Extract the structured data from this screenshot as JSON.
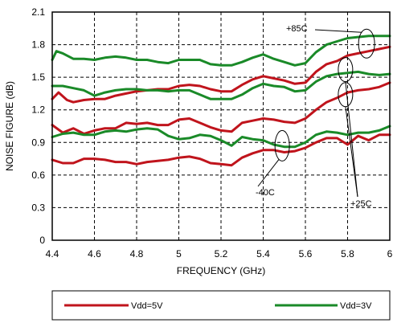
{
  "chart_data": {
    "type": "line",
    "xlabel": "FREQUENCY (GHz)",
    "ylabel": "NOISE FIGURE (dB)",
    "xlim": [
      4.4,
      6.0
    ],
    "ylim": [
      0,
      2.1
    ],
    "x_ticks": [
      "4.4",
      "4.6",
      "4.8",
      "5",
      "5.2",
      "5.4",
      "5.6",
      "5.8",
      "6"
    ],
    "y_ticks": [
      "0",
      "0.3",
      "0.6",
      "0.9",
      "1.2",
      "1.5",
      "1.8",
      "2.1"
    ],
    "grid": "dashed",
    "legend": "bottom",
    "legend_entries": [
      {
        "label": "Vdd=5V",
        "color": "#c0141c"
      },
      {
        "label": "Vdd=3V",
        "color": "#1a8a28"
      }
    ],
    "annotations": [
      "+85C",
      "+25C",
      "-40C"
    ],
    "series": [
      {
        "supply": "Vdd=3V",
        "temp": "+85C",
        "color": "#1a8a28",
        "x": [
          4.4,
          4.42,
          4.45,
          4.5,
          4.55,
          4.6,
          4.65,
          4.7,
          4.75,
          4.8,
          4.85,
          4.9,
          4.95,
          5.0,
          5.05,
          5.1,
          5.15,
          5.2,
          5.25,
          5.3,
          5.35,
          5.4,
          5.45,
          5.5,
          5.55,
          5.6,
          5.65,
          5.7,
          5.75,
          5.8,
          5.85,
          5.9,
          5.95,
          6.0
        ],
        "y": [
          1.66,
          1.74,
          1.72,
          1.67,
          1.67,
          1.66,
          1.68,
          1.69,
          1.68,
          1.66,
          1.66,
          1.64,
          1.63,
          1.66,
          1.66,
          1.66,
          1.62,
          1.61,
          1.61,
          1.64,
          1.68,
          1.71,
          1.67,
          1.64,
          1.61,
          1.63,
          1.73,
          1.8,
          1.83,
          1.86,
          1.87,
          1.88,
          1.88,
          1.88
        ]
      },
      {
        "supply": "Vdd=5V",
        "temp": "+85C",
        "color": "#c0141c",
        "x": [
          4.4,
          4.43,
          4.47,
          4.5,
          4.55,
          4.6,
          4.65,
          4.7,
          4.75,
          4.8,
          4.85,
          4.9,
          4.95,
          5.0,
          5.05,
          5.1,
          5.15,
          5.2,
          5.25,
          5.3,
          5.35,
          5.4,
          5.45,
          5.5,
          5.55,
          5.6,
          5.65,
          5.7,
          5.75,
          5.8,
          5.85,
          5.9,
          5.95,
          6.0
        ],
        "y": [
          1.3,
          1.36,
          1.29,
          1.27,
          1.29,
          1.3,
          1.3,
          1.33,
          1.35,
          1.37,
          1.38,
          1.39,
          1.39,
          1.42,
          1.43,
          1.42,
          1.39,
          1.37,
          1.37,
          1.43,
          1.48,
          1.51,
          1.49,
          1.47,
          1.44,
          1.45,
          1.55,
          1.62,
          1.65,
          1.7,
          1.72,
          1.74,
          1.76,
          1.78
        ]
      },
      {
        "supply": "Vdd=3V",
        "temp": "+25C",
        "color": "#1a8a28",
        "x": [
          4.4,
          4.45,
          4.5,
          4.55,
          4.6,
          4.65,
          4.7,
          4.75,
          4.8,
          4.85,
          4.9,
          4.95,
          5.0,
          5.05,
          5.1,
          5.15,
          5.2,
          5.25,
          5.3,
          5.35,
          5.4,
          5.45,
          5.5,
          5.55,
          5.6,
          5.65,
          5.7,
          5.75,
          5.8,
          5.85,
          5.9,
          5.95,
          6.0
        ],
        "y": [
          1.42,
          1.42,
          1.4,
          1.38,
          1.33,
          1.36,
          1.38,
          1.39,
          1.39,
          1.38,
          1.38,
          1.37,
          1.38,
          1.38,
          1.34,
          1.3,
          1.3,
          1.3,
          1.34,
          1.4,
          1.44,
          1.42,
          1.41,
          1.37,
          1.38,
          1.46,
          1.51,
          1.53,
          1.54,
          1.55,
          1.53,
          1.52,
          1.53
        ]
      },
      {
        "supply": "Vdd=5V",
        "temp": "+25C",
        "color": "#c0141c",
        "x": [
          4.4,
          4.45,
          4.5,
          4.55,
          4.6,
          4.65,
          4.7,
          4.75,
          4.8,
          4.85,
          4.9,
          4.95,
          5.0,
          5.05,
          5.1,
          5.15,
          5.2,
          5.25,
          5.3,
          5.35,
          5.4,
          5.45,
          5.5,
          5.55,
          5.6,
          5.65,
          5.7,
          5.75,
          5.8,
          5.85,
          5.9,
          5.95,
          6.0
        ],
        "y": [
          1.06,
          0.99,
          1.03,
          0.98,
          1.01,
          1.03,
          1.03,
          1.08,
          1.07,
          1.08,
          1.06,
          1.06,
          1.11,
          1.12,
          1.08,
          1.04,
          1.01,
          1.0,
          1.08,
          1.1,
          1.12,
          1.11,
          1.09,
          1.08,
          1.12,
          1.2,
          1.27,
          1.31,
          1.36,
          1.38,
          1.39,
          1.41,
          1.45
        ]
      },
      {
        "supply": "Vdd=3V",
        "temp": "-40C",
        "color": "#1a8a28",
        "x": [
          4.4,
          4.45,
          4.5,
          4.55,
          4.6,
          4.65,
          4.7,
          4.75,
          4.8,
          4.85,
          4.9,
          4.95,
          5.0,
          5.05,
          5.1,
          5.15,
          5.2,
          5.25,
          5.3,
          5.35,
          5.4,
          5.45,
          5.5,
          5.55,
          5.6,
          5.65,
          5.7,
          5.75,
          5.8,
          5.85,
          5.9,
          5.95,
          6.0
        ],
        "y": [
          0.95,
          0.98,
          0.99,
          0.97,
          0.97,
          1.0,
          1.01,
          1.0,
          1.02,
          1.03,
          1.02,
          0.96,
          0.93,
          0.94,
          0.97,
          0.96,
          0.92,
          0.87,
          0.95,
          0.93,
          0.92,
          0.88,
          0.86,
          0.86,
          0.9,
          0.97,
          1.0,
          0.99,
          0.97,
          0.99,
          0.99,
          1.01,
          1.05
        ]
      },
      {
        "supply": "Vdd=5V",
        "temp": "-40C",
        "color": "#c0141c",
        "x": [
          4.4,
          4.45,
          4.5,
          4.55,
          4.6,
          4.65,
          4.7,
          4.75,
          4.8,
          4.85,
          4.9,
          4.95,
          5.0,
          5.05,
          5.1,
          5.15,
          5.2,
          5.25,
          5.3,
          5.35,
          5.4,
          5.45,
          5.5,
          5.55,
          5.6,
          5.65,
          5.7,
          5.75,
          5.8,
          5.85,
          5.9,
          5.95,
          6.0
        ],
        "y": [
          0.74,
          0.71,
          0.71,
          0.75,
          0.75,
          0.74,
          0.72,
          0.72,
          0.7,
          0.72,
          0.73,
          0.74,
          0.76,
          0.77,
          0.75,
          0.71,
          0.7,
          0.69,
          0.76,
          0.8,
          0.83,
          0.83,
          0.81,
          0.82,
          0.85,
          0.9,
          0.94,
          0.94,
          0.88,
          0.96,
          0.92,
          0.97,
          0.97
        ]
      }
    ]
  }
}
